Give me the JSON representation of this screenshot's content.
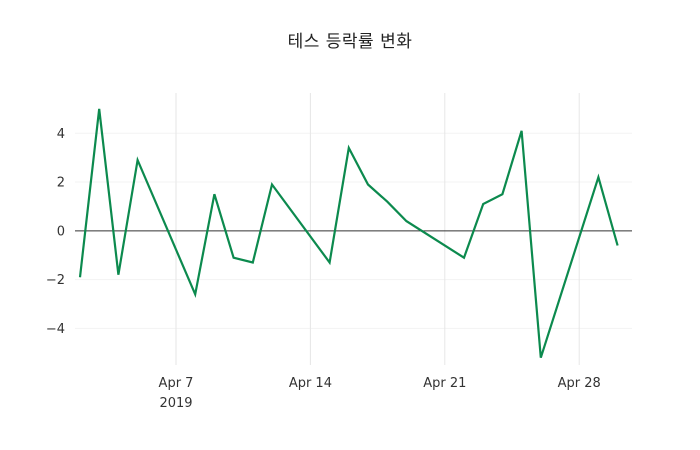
{
  "title": "테스 등락률 변화",
  "chart_data": {
    "type": "line",
    "title": "테스 등락률 변화",
    "series_name": "등락률",
    "x_unit": "date, April 2019 (business days)",
    "x_days": [
      2,
      3,
      4,
      5,
      8,
      9,
      10,
      11,
      12,
      15,
      16,
      17,
      18,
      19,
      22,
      23,
      24,
      25,
      26,
      29,
      30
    ],
    "values": [
      -1.9,
      5.0,
      -1.8,
      2.9,
      -2.6,
      1.5,
      -1.1,
      -1.3,
      1.9,
      -1.3,
      3.4,
      1.9,
      1.2,
      0.4,
      -1.1,
      1.1,
      1.5,
      4.1,
      -5.2,
      2.2,
      -0.6
    ],
    "y_ticks": [
      -4,
      -2,
      0,
      2,
      4
    ],
    "x_ticks": [
      {
        "day": 7,
        "label": "Apr 7",
        "sublabel": "2019"
      },
      {
        "day": 14,
        "label": "Apr 14",
        "sublabel": ""
      },
      {
        "day": 21,
        "label": "Apr 21",
        "sublabel": ""
      },
      {
        "day": 28,
        "label": "Apr 28",
        "sublabel": ""
      }
    ],
    "ylim": [
      -5.5,
      5.65
    ],
    "line_color": "#0c8a4e",
    "zero_line_color": "#333333",
    "grid_color": "#e6e6e6",
    "h_grid_color": "#f3f3f3",
    "tick_label_color": "#333333",
    "grid": "vertical weekly gridlines, faint horizontal gridlines, dark zero line",
    "legend": "none"
  }
}
